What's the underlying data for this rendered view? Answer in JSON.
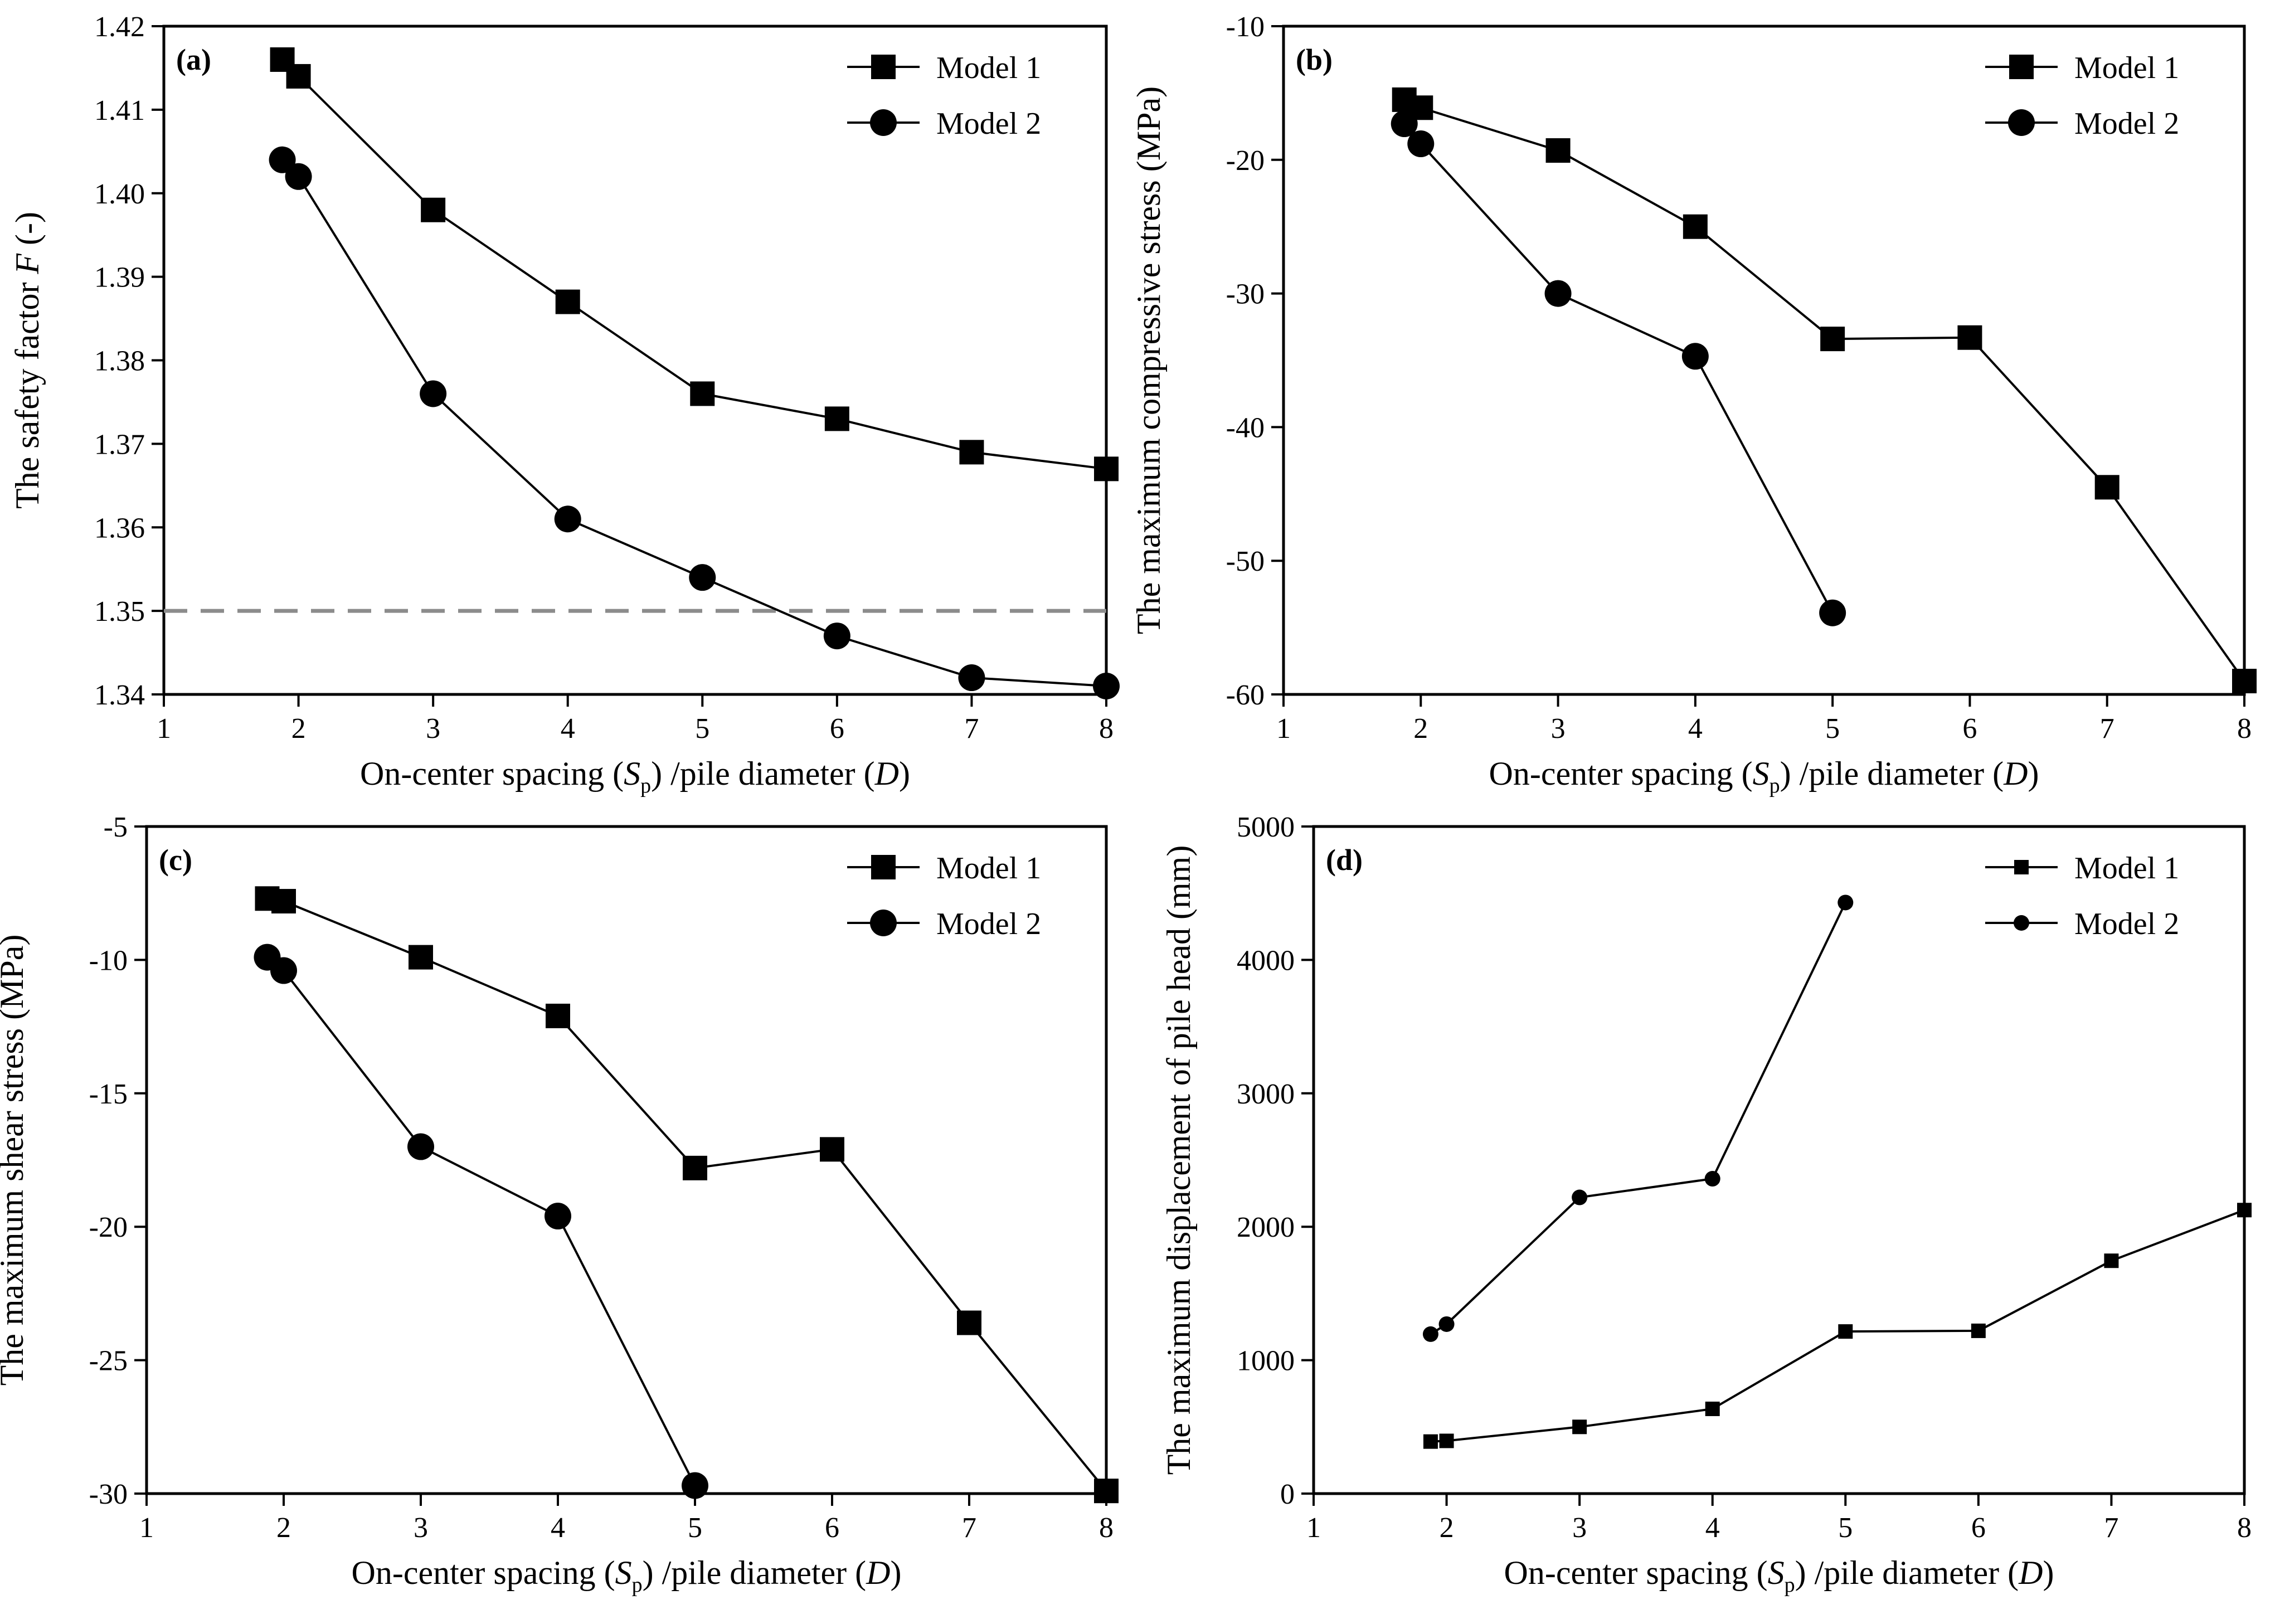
{
  "chart_data": [
    {
      "type": "line",
      "panel": "(a)",
      "xlabel": "On-center spacing (Sp) /pile diameter (D)",
      "xlabel_parts": {
        "pre": "On-center spacing (",
        "s": "S",
        "p": "p",
        "mid": ") /pile diameter (",
        "d": "D",
        "post": ")"
      },
      "ylabel": "The safety factor F (-)",
      "ylabel_parts": {
        "pre": "The safety factor ",
        "italic": "F",
        "post": " (-)"
      },
      "xlim": [
        1,
        8
      ],
      "ylim": [
        1.34,
        1.42
      ],
      "xticks": [
        "1",
        "2",
        "3",
        "4",
        "5",
        "6",
        "7",
        "8"
      ],
      "yticks": [
        "1.34",
        "1.35",
        "1.36",
        "1.37",
        "1.38",
        "1.39",
        "1.40",
        "1.41",
        "1.42"
      ],
      "reference_line": {
        "y": 1.35,
        "style": "dashed",
        "color": "#8c8c8c"
      },
      "legend_position": "top-right",
      "series": [
        {
          "name": "Model 1",
          "marker": "square",
          "x": [
            1.88,
            2,
            3,
            4,
            5,
            6,
            7,
            8
          ],
          "values": [
            1.416,
            1.414,
            1.398,
            1.387,
            1.376,
            1.373,
            1.369,
            1.367
          ]
        },
        {
          "name": "Model 2",
          "marker": "circle",
          "x": [
            1.88,
            2,
            3,
            4,
            5,
            6,
            7,
            8
          ],
          "values": [
            1.404,
            1.402,
            1.376,
            1.361,
            1.354,
            1.347,
            1.342,
            1.341
          ]
        }
      ]
    },
    {
      "type": "line",
      "panel": "(b)",
      "xlabel": "On-center spacing (Sp) /pile diameter (D)",
      "xlabel_parts": {
        "pre": "On-center spacing (",
        "s": "S",
        "p": "p",
        "mid": ") /pile diameter (",
        "d": "D",
        "post": ")"
      },
      "ylabel": "The maximum compressive stress (MPa)",
      "ylabel_parts": {
        "pre": "The maximum compressive stress (MPa)",
        "italic": "",
        "post": ""
      },
      "xlim": [
        1,
        8
      ],
      "ylim": [
        -60,
        -10
      ],
      "xticks": [
        "1",
        "2",
        "3",
        "4",
        "5",
        "6",
        "7",
        "8"
      ],
      "yticks": [
        "-60",
        "-50",
        "-40",
        "-30",
        "-20",
        "-10"
      ],
      "legend_position": "top-right",
      "series": [
        {
          "name": "Model 1",
          "marker": "square",
          "x": [
            1.88,
            2,
            3,
            4,
            5,
            6,
            7,
            8
          ],
          "values": [
            -15.5,
            -16.1,
            -19.3,
            -25.0,
            -33.4,
            -33.3,
            -44.5,
            -59.0
          ]
        },
        {
          "name": "Model 2",
          "marker": "circle",
          "x": [
            1.88,
            2,
            3,
            4,
            5
          ],
          "values": [
            -17.3,
            -18.8,
            -30.0,
            -34.7,
            -53.9
          ]
        }
      ]
    },
    {
      "type": "line",
      "panel": "(c)",
      "xlabel": "On-center spacing (Sp) /pile diameter (D)",
      "xlabel_parts": {
        "pre": "On-center spacing (",
        "s": "S",
        "p": "p",
        "mid": ") /pile diameter (",
        "d": "D",
        "post": ")"
      },
      "ylabel": "The maximum shear stress (MPa)",
      "ylabel_parts": {
        "pre": "The maximum shear stress (MPa)",
        "italic": "",
        "post": ""
      },
      "xlim": [
        1,
        8
      ],
      "ylim": [
        -30,
        -5
      ],
      "xticks": [
        "1",
        "2",
        "3",
        "4",
        "5",
        "6",
        "7",
        "8"
      ],
      "yticks": [
        "-30",
        "-25",
        "-20",
        "-15",
        "-10",
        "-5"
      ],
      "legend_position": "top-right",
      "series": [
        {
          "name": "Model 1",
          "marker": "square",
          "x": [
            1.88,
            2,
            3,
            4,
            5,
            6,
            7,
            8
          ],
          "values": [
            -7.7,
            -7.8,
            -9.9,
            -12.1,
            -17.8,
            -17.1,
            -23.6,
            -29.9
          ]
        },
        {
          "name": "Model 2",
          "marker": "circle",
          "x": [
            1.88,
            2,
            3,
            4,
            5
          ],
          "values": [
            -9.9,
            -10.4,
            -17.0,
            -19.6,
            -29.7
          ]
        }
      ]
    },
    {
      "type": "line",
      "panel": "(d)",
      "xlabel": "On-center spacing (Sp) /pile diameter (D)",
      "xlabel_parts": {
        "pre": "On-center spacing (",
        "s": "S",
        "p": "p",
        "mid": ") /pile diameter (",
        "d": "D",
        "post": ")"
      },
      "ylabel": "The maximum displacement of pile head (mm)",
      "ylabel_parts": {
        "pre": "The maximum displacement of pile head (mm)",
        "italic": "",
        "post": ""
      },
      "xlim": [
        1,
        8
      ],
      "ylim": [
        0,
        5000
      ],
      "xticks": [
        "1",
        "2",
        "3",
        "4",
        "5",
        "6",
        "7",
        "8"
      ],
      "yticks": [
        "0",
        "1000",
        "2000",
        "3000",
        "4000",
        "5000"
      ],
      "legend_position": "top-right",
      "small_markers": true,
      "series": [
        {
          "name": "Model 1",
          "marker": "square",
          "x": [
            1.88,
            2,
            3,
            4,
            5,
            6,
            7,
            8
          ],
          "values": [
            390,
            395,
            500,
            635,
            1215,
            1220,
            1745,
            2125
          ]
        },
        {
          "name": "Model 2",
          "marker": "circle",
          "x": [
            1.88,
            2,
            3,
            4,
            5
          ],
          "values": [
            1195,
            1270,
            2220,
            2360,
            4430
          ]
        }
      ]
    }
  ]
}
